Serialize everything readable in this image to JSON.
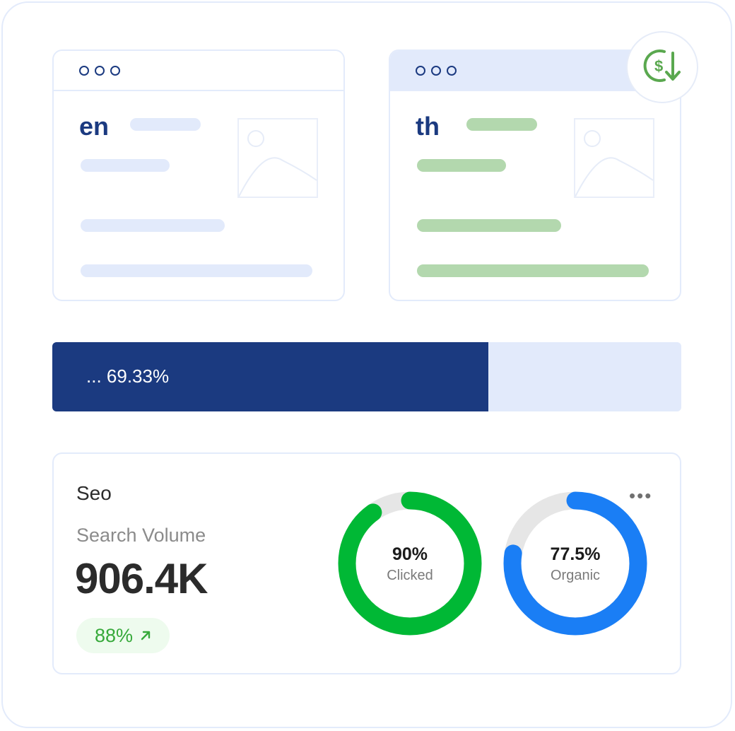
{
  "browsers": {
    "left": {
      "lang": "en",
      "accent": "#e2eafb"
    },
    "right": {
      "lang": "th",
      "accent": "#b3d8ae"
    }
  },
  "badge": {
    "icon": "dollar-download-icon",
    "color": "#5aa84f"
  },
  "progress": {
    "label": "... 69.33%",
    "value": 69.33,
    "fill_color": "#1b3a80",
    "track_color": "#e2eafb"
  },
  "seo": {
    "title": "Seo",
    "metric_label": "Search Volume",
    "metric_value": "906.4K",
    "delta": "88%",
    "delta_icon": "arrow-up-right-icon",
    "more_icon": "more-horizontal-icon",
    "more_label": "•••"
  },
  "donuts": [
    {
      "pct_label": "90%",
      "label": "Clicked",
      "value": 90,
      "color": "#00b835",
      "track": "#e6e6e6"
    },
    {
      "pct_label": "77.5%",
      "label": "Organic",
      "value": 77.5,
      "color": "#1a7ef5",
      "track": "#e6e6e6"
    }
  ]
}
